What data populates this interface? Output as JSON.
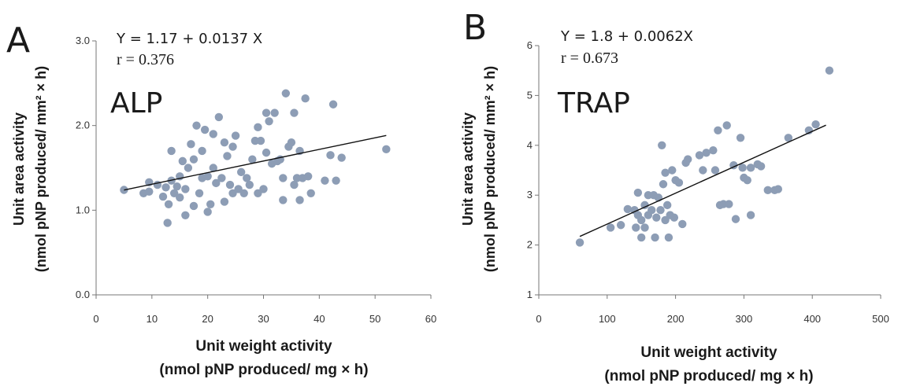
{
  "chart_data": [
    {
      "type": "scatter",
      "panel_label": "A",
      "enzyme_label": "ALP",
      "equation": "Y = 1.17 + 0.0137 X",
      "r_text": "r = 0.376",
      "xlabel": "Unit weight activity",
      "xlabel_units": "(nmol pNP produced/ mg × h)",
      "ylabel": "Unit area activity",
      "ylabel_units": "(nmol pNP produced/ mm² × h)",
      "xlim": [
        0,
        60
      ],
      "ylim": [
        0,
        3
      ],
      "x_ticks": [
        0,
        10,
        20,
        30,
        40,
        50,
        60
      ],
      "x_tick_labels": [
        "0",
        "10",
        "20",
        "30",
        "40",
        "50",
        "60"
      ],
      "y_ticks": [
        0,
        1,
        2,
        3
      ],
      "y_tick_labels": [
        "0.0",
        "1.0",
        "2.0",
        "3.0"
      ],
      "point_color": "#8d9db5",
      "fit_line": {
        "intercept": 1.17,
        "slope": 0.0137,
        "x_range": [
          5,
          52
        ]
      },
      "points": [
        [
          5,
          1.24
        ],
        [
          8.5,
          1.2
        ],
        [
          9.5,
          1.33
        ],
        [
          9.5,
          1.22
        ],
        [
          11,
          1.3
        ],
        [
          12,
          1.16
        ],
        [
          12.5,
          1.27
        ],
        [
          12.8,
          0.85
        ],
        [
          13,
          1.07
        ],
        [
          13.5,
          1.35
        ],
        [
          13.5,
          1.7
        ],
        [
          14,
          1.2
        ],
        [
          14.5,
          1.28
        ],
        [
          15,
          1.15
        ],
        [
          15,
          1.4
        ],
        [
          15.5,
          1.58
        ],
        [
          16,
          0.94
        ],
        [
          16,
          1.25
        ],
        [
          16.5,
          1.5
        ],
        [
          17,
          1.78
        ],
        [
          17.5,
          1.05
        ],
        [
          17.5,
          1.6
        ],
        [
          18,
          2.0
        ],
        [
          18.5,
          1.2
        ],
        [
          19,
          1.38
        ],
        [
          19,
          1.7
        ],
        [
          19.5,
          1.95
        ],
        [
          20,
          0.98
        ],
        [
          20,
          1.4
        ],
        [
          20.5,
          1.07
        ],
        [
          21,
          1.9
        ],
        [
          21,
          1.5
        ],
        [
          21.5,
          1.32
        ],
        [
          22,
          2.1
        ],
        [
          22.5,
          1.38
        ],
        [
          23,
          1.1
        ],
        [
          23,
          1.8
        ],
        [
          23.5,
          1.64
        ],
        [
          24,
          1.3
        ],
        [
          24.5,
          1.2
        ],
        [
          24.5,
          1.75
        ],
        [
          25,
          1.88
        ],
        [
          25.5,
          1.25
        ],
        [
          26,
          1.45
        ],
        [
          26.5,
          1.2
        ],
        [
          27,
          1.38
        ],
        [
          27.5,
          1.3
        ],
        [
          28,
          1.6
        ],
        [
          28.5,
          1.82
        ],
        [
          29,
          1.98
        ],
        [
          29,
          1.2
        ],
        [
          29.5,
          1.82
        ],
        [
          30,
          1.25
        ],
        [
          30.5,
          2.15
        ],
        [
          30.5,
          1.68
        ],
        [
          31,
          2.05
        ],
        [
          31.5,
          1.55
        ],
        [
          32,
          2.15
        ],
        [
          32.5,
          1.58
        ],
        [
          33,
          1.6
        ],
        [
          33.5,
          1.12
        ],
        [
          33.5,
          1.38
        ],
        [
          34,
          2.38
        ],
        [
          34.5,
          1.75
        ],
        [
          35,
          1.8
        ],
        [
          35.5,
          1.3
        ],
        [
          35.5,
          2.15
        ],
        [
          36,
          1.38
        ],
        [
          36.5,
          1.12
        ],
        [
          36.5,
          1.7
        ],
        [
          37,
          1.38
        ],
        [
          37.5,
          2.32
        ],
        [
          38,
          1.4
        ],
        [
          38.5,
          1.2
        ],
        [
          41,
          1.35
        ],
        [
          42,
          1.65
        ],
        [
          42.5,
          2.25
        ],
        [
          43,
          1.35
        ],
        [
          44,
          1.62
        ],
        [
          52,
          1.72
        ]
      ]
    },
    {
      "type": "scatter",
      "panel_label": "B",
      "enzyme_label": "TRAP",
      "equation": "Y = 1.8 + 0.0062X",
      "r_text": "r = 0.673",
      "xlabel": "Unit weight activity",
      "xlabel_units": "(nmol pNP produced/ mg × h)",
      "ylabel": "Unit area activity",
      "ylabel_units": "(nmol pNP produced/ mm² × h)",
      "xlim": [
        0,
        500
      ],
      "ylim": [
        1,
        6
      ],
      "x_ticks": [
        0,
        100,
        200,
        300,
        400,
        500
      ],
      "x_tick_labels": [
        "0",
        "100",
        "200",
        "300",
        "400",
        "500"
      ],
      "y_ticks": [
        1,
        2,
        3,
        4,
        5,
        6
      ],
      "y_tick_labels": [
        "1",
        "2",
        "3",
        "4",
        "5",
        "6"
      ],
      "point_color": "#8d9db5",
      "fit_line": {
        "intercept": 1.8,
        "slope": 0.0062,
        "x_range": [
          60,
          420
        ]
      },
      "points": [
        [
          60,
          2.05
        ],
        [
          105,
          2.35
        ],
        [
          120,
          2.4
        ],
        [
          130,
          2.72
        ],
        [
          140,
          2.7
        ],
        [
          142,
          2.35
        ],
        [
          145,
          2.6
        ],
        [
          145,
          3.05
        ],
        [
          150,
          2.15
        ],
        [
          150,
          2.5
        ],
        [
          155,
          2.8
        ],
        [
          155,
          2.35
        ],
        [
          160,
          3.0
        ],
        [
          160,
          2.6
        ],
        [
          165,
          2.7
        ],
        [
          168,
          3.0
        ],
        [
          170,
          2.15
        ],
        [
          172,
          2.55
        ],
        [
          175,
          2.95
        ],
        [
          178,
          2.7
        ],
        [
          180,
          4.0
        ],
        [
          182,
          3.22
        ],
        [
          185,
          2.5
        ],
        [
          185,
          3.45
        ],
        [
          188,
          2.8
        ],
        [
          190,
          2.15
        ],
        [
          192,
          2.6
        ],
        [
          195,
          3.5
        ],
        [
          198,
          2.55
        ],
        [
          200,
          3.3
        ],
        [
          205,
          3.25
        ],
        [
          210,
          2.42
        ],
        [
          215,
          3.65
        ],
        [
          218,
          3.72
        ],
        [
          235,
          3.8
        ],
        [
          240,
          3.5
        ],
        [
          245,
          3.85
        ],
        [
          255,
          3.9
        ],
        [
          258,
          3.5
        ],
        [
          262,
          4.3
        ],
        [
          265,
          2.8
        ],
        [
          270,
          2.82
        ],
        [
          275,
          4.4
        ],
        [
          278,
          2.82
        ],
        [
          285,
          3.6
        ],
        [
          288,
          2.52
        ],
        [
          295,
          4.15
        ],
        [
          298,
          3.55
        ],
        [
          300,
          3.35
        ],
        [
          305,
          3.3
        ],
        [
          310,
          3.55
        ],
        [
          310,
          2.6
        ],
        [
          320,
          3.62
        ],
        [
          325,
          3.58
        ],
        [
          335,
          3.1
        ],
        [
          345,
          3.1
        ],
        [
          350,
          3.12
        ],
        [
          365,
          4.15
        ],
        [
          395,
          4.3
        ],
        [
          405,
          4.42
        ],
        [
          425,
          5.5
        ]
      ]
    }
  ]
}
